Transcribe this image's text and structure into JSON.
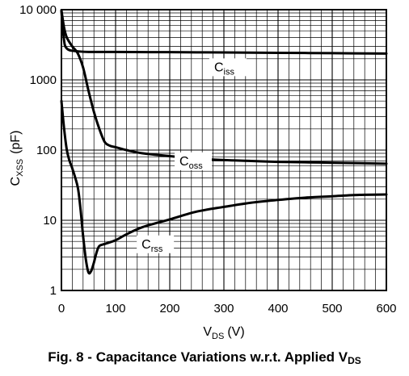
{
  "chart_data": {
    "type": "line",
    "title": "Fig. 8 - Capacitance Variations w.r.t. Applied V",
    "title_subscript": "DS",
    "xlabel": "V",
    "xlabel_subscript": "DS",
    "xlabel_unit": "(V)",
    "ylabel": "C",
    "ylabel_subscript": "XSS",
    "ylabel_unit": "(pF)",
    "x_scale": "linear",
    "y_scale": "log",
    "xlim": [
      0,
      600
    ],
    "ylim": [
      1,
      10000
    ],
    "grid": true,
    "x_ticks": [
      0,
      100,
      200,
      300,
      400,
      500,
      600
    ],
    "x_tick_labels": [
      "0",
      "100",
      "200",
      "300",
      "400",
      "500",
      "600"
    ],
    "y_ticks": [
      1,
      10,
      100,
      1000,
      10000
    ],
    "y_tick_labels": [
      "1",
      "10",
      "100",
      "1000",
      "10 000"
    ],
    "series": [
      {
        "name": "C",
        "name_subscript": "iss",
        "x": [
          0,
          3,
          6,
          10,
          15,
          20,
          30,
          50,
          100,
          200,
          300,
          400,
          500,
          600
        ],
        "y": [
          9500,
          5000,
          3200,
          2800,
          2650,
          2600,
          2550,
          2500,
          2500,
          2480,
          2460,
          2430,
          2400,
          2370
        ]
      },
      {
        "name": "C",
        "name_subscript": "oss",
        "x": [
          0,
          5,
          10,
          20,
          30,
          40,
          50,
          60,
          70,
          80,
          90,
          100,
          120,
          150,
          200,
          250,
          300,
          350,
          400,
          450,
          500,
          550,
          600
        ],
        "y": [
          9800,
          5500,
          4000,
          3000,
          2400,
          1500,
          700,
          350,
          200,
          130,
          115,
          110,
          100,
          90,
          82,
          76,
          72,
          70,
          68,
          67,
          66,
          65,
          64
        ]
      },
      {
        "name": "C",
        "name_subscript": "rss",
        "x": [
          0,
          5,
          10,
          15,
          20,
          30,
          35,
          40,
          45,
          50,
          55,
          60,
          65,
          70,
          80,
          100,
          120,
          150,
          200,
          250,
          300,
          350,
          400,
          450,
          500,
          550,
          600
        ],
        "y": [
          500,
          200,
          100,
          70,
          55,
          30,
          15,
          6,
          2.8,
          1.8,
          1.9,
          2.5,
          3.5,
          4.3,
          4.6,
          5.2,
          6.3,
          8.0,
          10.3,
          13.3,
          15.5,
          17.8,
          19.5,
          21.0,
          22.0,
          23.0,
          23.3
        ]
      }
    ]
  }
}
